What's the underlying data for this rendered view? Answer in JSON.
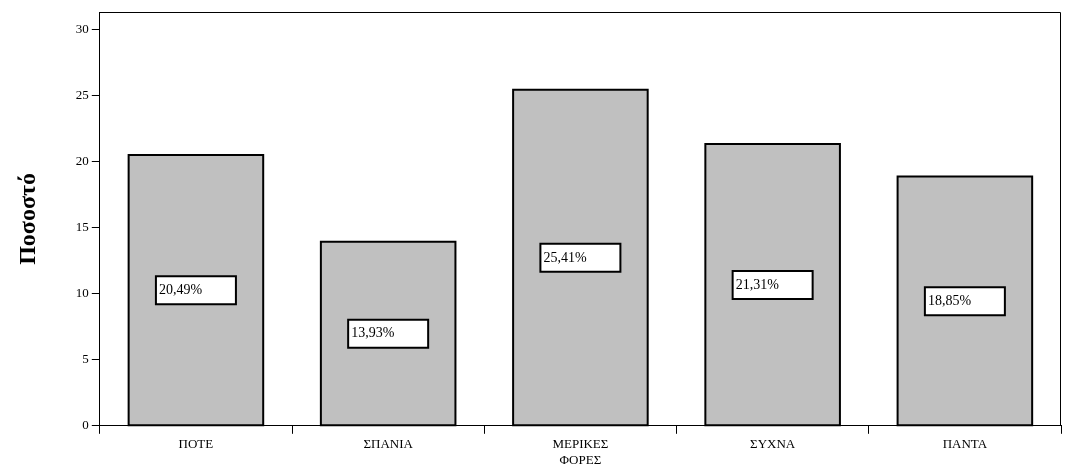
{
  "chart_data": {
    "type": "bar",
    "ylabel": "Ποσοστό",
    "categories": [
      "ΠΟΤΕ",
      "ΣΠΑΝΙΑ",
      "ΜΕΡΙΚΕΣ ΦΟΡΕΣ",
      "ΣΥΧΝΑ",
      "ΠΑΝΤΑ"
    ],
    "values": [
      20.49,
      13.93,
      25.41,
      21.31,
      18.85
    ],
    "value_labels": [
      "20,49%",
      "13,93%",
      "25,41%",
      "21,31%",
      "18,85%"
    ],
    "color": "#c0c0c0",
    "ylim": [
      0,
      31.3
    ],
    "yticks": [
      0,
      5,
      10,
      15,
      20,
      25,
      30
    ]
  }
}
